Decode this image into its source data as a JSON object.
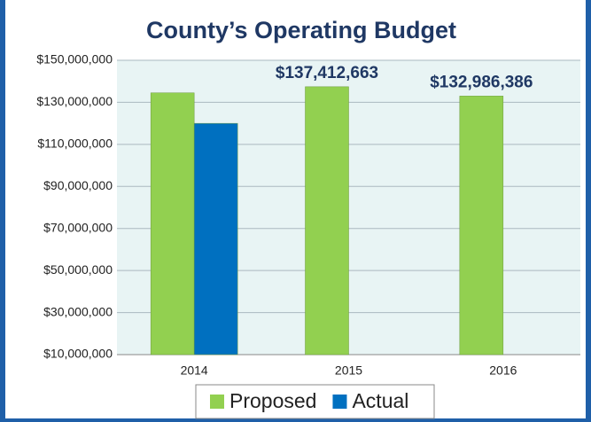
{
  "chart_data": {
    "type": "bar",
    "title": "County’s Operating Budget",
    "categories": [
      "2014",
      "2015",
      "2016"
    ],
    "series": [
      {
        "name": "Proposed",
        "color": "#92d050",
        "values": [
          134500000,
          137412663,
          132986386
        ],
        "value_labels": [
          null,
          "$137,412,663",
          "$132,986,386"
        ]
      },
      {
        "name": "Actual",
        "color": "#0070c0",
        "values": [
          120000000,
          null,
          null
        ]
      }
    ],
    "ylim": [
      10000000,
      150000000
    ],
    "yticks": [
      {
        "value": 10000000,
        "label": "$10,000,000"
      },
      {
        "value": 30000000,
        "label": "$30,000,000"
      },
      {
        "value": 50000000,
        "label": "$50,000,000"
      },
      {
        "value": 70000000,
        "label": "$70,000,000"
      },
      {
        "value": 90000000,
        "label": "$90,000,000"
      },
      {
        "value": 110000000,
        "label": "$110,000,000"
      },
      {
        "value": 130000000,
        "label": "$130,000,000"
      },
      {
        "value": 150000000,
        "label": "$150,000,000"
      }
    ],
    "grid": true,
    "legend": "bottom"
  }
}
